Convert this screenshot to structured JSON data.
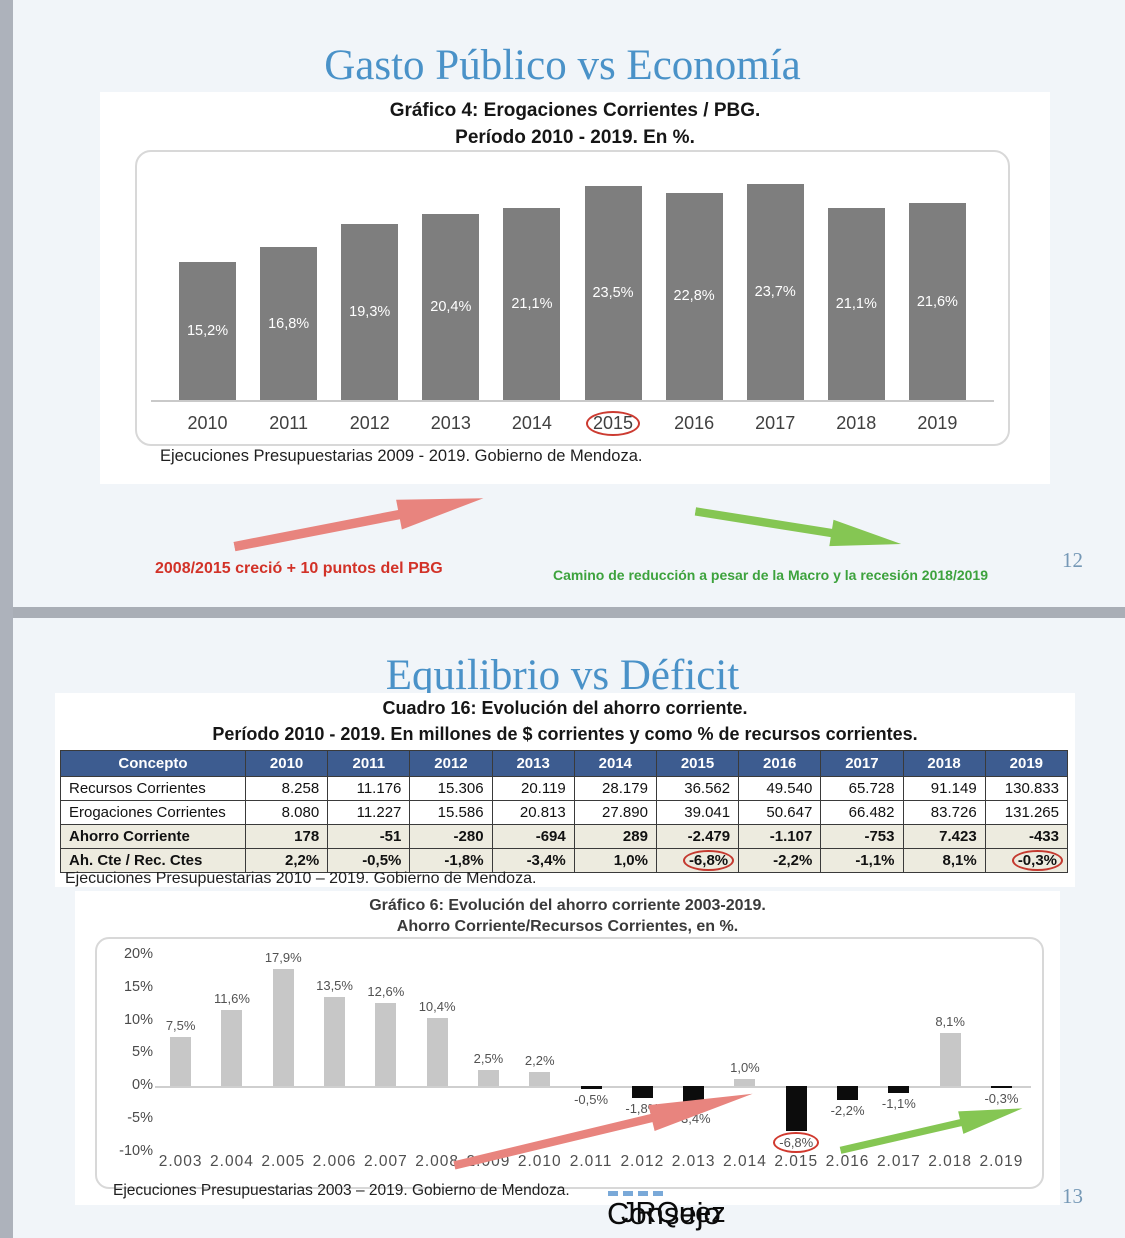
{
  "slide1": {
    "title": "Gasto Público vs Economía",
    "page_number": "12",
    "red_note": "2008/2015 creció + 10 puntos del PBG",
    "green_note": "Camino de reducción a pesar de la Macro y la recesión 2018/2019"
  },
  "slide2": {
    "title": "Equilibrio vs Déficit",
    "page_number": "13",
    "footer_garble_layers": [
      "Consejo",
      "JRQuez"
    ],
    "footer_dashes": 4
  },
  "colors": {
    "title_blue": "#4a92c8",
    "bar_gray": "#7e7e7e",
    "bar_light_gray": "#c7c7c7",
    "bar_black": "#0c0c0c",
    "table_header_blue": "#3d5c90",
    "table_beige": "#edebdf",
    "red_accent": "#d23228",
    "green_accent": "#3da23d",
    "arrow_red": "#e8847e",
    "arrow_green": "#85c653",
    "circle_red": "#cc3b31",
    "page_number_blue": "#7598b6"
  },
  "chart_data": [
    {
      "id": "grafico4",
      "type": "bar",
      "title": "Gráfico 4: Erogaciones Corrientes / PBG.",
      "subtitle": "Período 2010 - 2019. En %.",
      "categories": [
        "2010",
        "2011",
        "2012",
        "2013",
        "2014",
        "2015",
        "2016",
        "2017",
        "2018",
        "2019"
      ],
      "values": [
        15.2,
        16.8,
        19.3,
        20.4,
        21.1,
        23.5,
        22.8,
        23.7,
        21.1,
        21.6
      ],
      "value_labels": [
        "15,2%",
        "16,8%",
        "19,3%",
        "20,4%",
        "21,1%",
        "23,5%",
        "22,8%",
        "23,7%",
        "21,1%",
        "21,6%"
      ],
      "circled_category": "2015",
      "ylim": [
        0,
        25
      ],
      "grid": false,
      "legend": false,
      "source": "Ejecuciones Presupuestarias 2009 - 2019. Gobierno de Mendoza."
    },
    {
      "id": "cuadro16",
      "type": "table",
      "title": "Cuadro 16: Evolución del ahorro corriente.",
      "subtitle": "Período 2010 - 2019. En millones de $ corrientes y como % de recursos corrientes.",
      "columns": [
        "Concepto",
        "2010",
        "2011",
        "2012",
        "2013",
        "2014",
        "2015",
        "2016",
        "2017",
        "2018",
        "2019"
      ],
      "rows": [
        {
          "label": "Recursos Corrientes",
          "bold": false,
          "values": [
            "8.258",
            "11.176",
            "15.306",
            "20.119",
            "28.179",
            "36.562",
            "49.540",
            "65.728",
            "91.149",
            "130.833"
          ]
        },
        {
          "label": "Erogaciones Corrientes",
          "bold": false,
          "values": [
            "8.080",
            "11.227",
            "15.586",
            "20.813",
            "27.890",
            "39.041",
            "50.647",
            "66.482",
            "83.726",
            "131.265"
          ]
        },
        {
          "label": "Ahorro Corriente",
          "bold": true,
          "values": [
            "178",
            "-51",
            "-280",
            "-694",
            "289",
            "-2.479",
            "-1.107",
            "-753",
            "7.423",
            "-433"
          ]
        },
        {
          "label": "Ah. Cte / Rec. Ctes",
          "bold": true,
          "values": [
            "2,2%",
            "-0,5%",
            "-1,8%",
            "-3,4%",
            "1,0%",
            "-6,8%",
            "-2,2%",
            "-1,1%",
            "8,1%",
            "-0,3%"
          ],
          "circled_columns": [
            "2015",
            "2019"
          ]
        }
      ],
      "source": "Ejecuciones Presupuestarias 2010 – 2019. Gobierno de Mendoza."
    },
    {
      "id": "grafico6",
      "type": "bar",
      "title": "Gráfico 6: Evolución del ahorro corriente 2003-2019.",
      "subtitle": "Ahorro Corriente/Recursos Corrientes, en %.",
      "categories": [
        "2.003",
        "2.004",
        "2.005",
        "2.006",
        "2.007",
        "2.008",
        "2.009",
        "2.010",
        "2.011",
        "2.012",
        "2.013",
        "2.014",
        "2.015",
        "2.016",
        "2.017",
        "2.018",
        "2.019"
      ],
      "values": [
        7.5,
        11.6,
        17.9,
        13.5,
        12.6,
        10.4,
        2.5,
        2.2,
        -0.5,
        -1.8,
        -3.4,
        1.0,
        -6.8,
        -2.2,
        -1.1,
        8.1,
        -0.3
      ],
      "value_labels": [
        "7,5%",
        "11,6%",
        "17,9%",
        "13,5%",
        "12,6%",
        "10,4%",
        "2,5%",
        "2,2%",
        "-0,5%",
        "-1,8%",
        "-3,4%",
        "1,0%",
        "-6,8%",
        "-2,2%",
        "-1,1%",
        "8,1%",
        "-0,3%"
      ],
      "circled_label": "-6,8%",
      "yticks": [
        "20%",
        "15%",
        "10%",
        "5%",
        "0%",
        "-5%",
        "-10%"
      ],
      "ylim": [
        -10,
        20
      ],
      "grid": false,
      "legend": false,
      "source": "Ejecuciones Presupuestarias 2003 – 2019. Gobierno de Mendoza."
    }
  ]
}
